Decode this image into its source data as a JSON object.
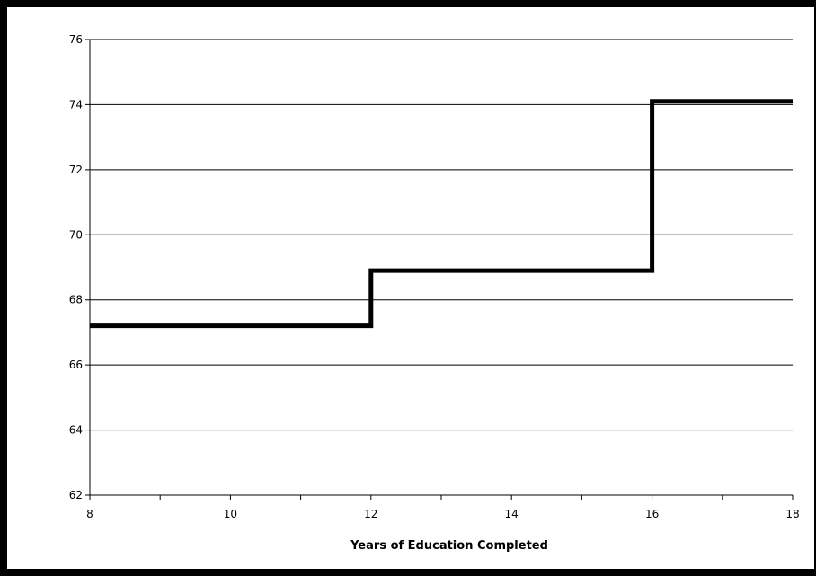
{
  "chart_data": {
    "type": "line",
    "title": "",
    "xlabel": "Years of Education Completed",
    "ylabel": "",
    "xlim": [
      8,
      18
    ],
    "ylim": [
      62,
      76
    ],
    "x_ticks": [
      8,
      10,
      12,
      14,
      16,
      18
    ],
    "y_ticks": [
      62,
      64,
      66,
      68,
      70,
      72,
      74,
      76
    ],
    "grid": "horizontal",
    "legend": "none",
    "step": true,
    "series": [
      {
        "x": [
          8,
          12,
          12,
          16,
          16,
          18
        ],
        "y": [
          67.2,
          67.2,
          68.9,
          68.9,
          74.1,
          74.1
        ],
        "color": "#000000"
      }
    ]
  }
}
